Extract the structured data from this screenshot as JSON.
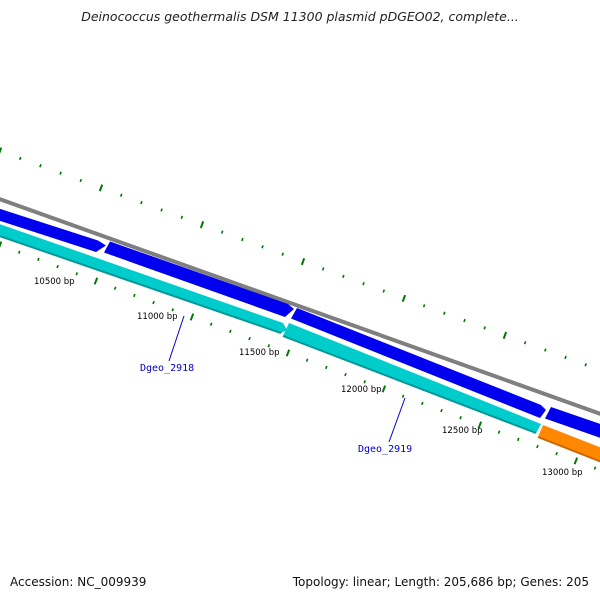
{
  "title": "Deinococcus geothermalis DSM 11300 plasmid pDGEO02, complete...",
  "footer": {
    "accession": "Accession: NC_009939",
    "summary": "Topology: linear; Length: 205,686 bp; Genes: 205"
  },
  "scale_labels": [
    "10500 bp",
    "11000 bp",
    "11500 bp",
    "12000 bp",
    "12500 bp",
    "13000 bp"
  ],
  "gene_labels": [
    "Dgeo_2918",
    "Dgeo_2919"
  ],
  "colors": {
    "backbone": "#7f7f7f",
    "forward_gene": "#0000ee",
    "reverse_cds": "#00cccc",
    "rna_feature": "#ff8800",
    "tick": "#007700",
    "label": "#0000cc"
  }
}
